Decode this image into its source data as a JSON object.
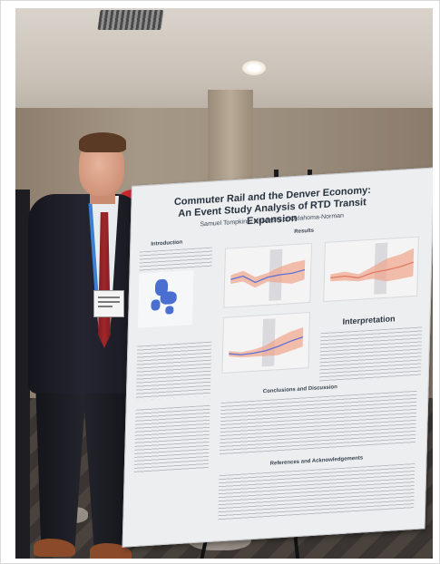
{
  "photo": {
    "subject": "person",
    "poster": {
      "title_line1": "Commuter Rail and the Denver Economy:",
      "title_line2": "An Event Study Analysis of RTD Transit Expansion",
      "author": "Samuel Tompkins, University of Oklahoma-Norman",
      "sections": {
        "intro": "Introduction",
        "results": "Results",
        "interpretation": "Interpretation",
        "conclusions": "Conclusions and Discussion",
        "references": "References and Acknowledgements"
      }
    }
  },
  "colors": {
    "poster_background": "#eceef0",
    "chart_band": "#f0a48a",
    "chart_line": "#5b6fd6",
    "title_color": "#28323f"
  }
}
